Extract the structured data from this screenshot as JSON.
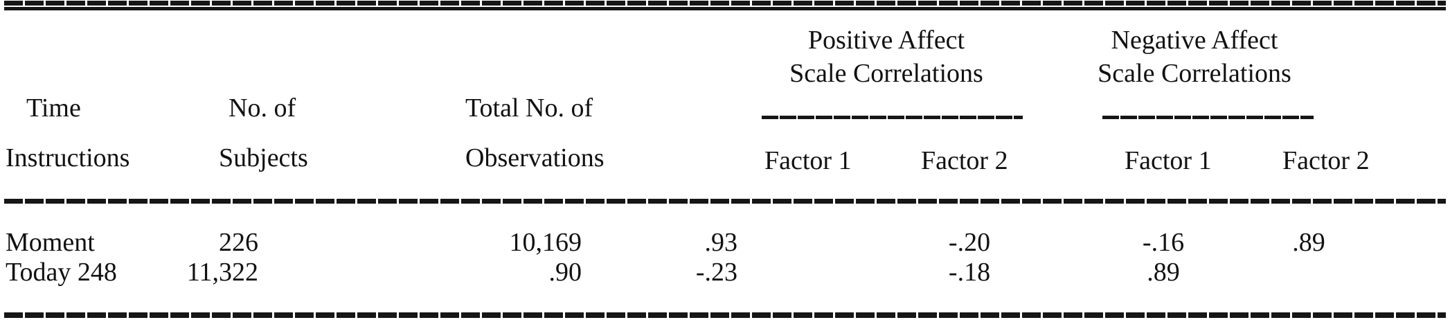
{
  "page": {
    "background_color": "#ffffff",
    "text_color": "#111111",
    "rule_color": "#161616"
  },
  "table": {
    "columns": {
      "time": {
        "line1": "Time",
        "line2": "Instructions"
      },
      "subjects": {
        "line1": "No. of",
        "line2": "Subjects"
      },
      "observations": {
        "line1": "Total No. of",
        "line2": "Observations"
      }
    },
    "groups": {
      "positive": {
        "line1": "Positive Affect",
        "line2": "Scale Correlations",
        "factor1": "Factor 1",
        "factor2": "Factor 2"
      },
      "negative": {
        "line1": "Negative Affect",
        "line2": "Scale Correlations",
        "factor1": "Factor 1",
        "factor2": "Factor 2"
      }
    },
    "rows": [
      {
        "cells": [
          "Moment",
          "226",
          "10,169",
          ".93",
          "-.20",
          "-.16",
          ".89"
        ]
      },
      {
        "cells": [
          "Today 248",
          "11,322",
          ".90",
          "-.23",
          "-.18",
          ".89",
          ""
        ]
      }
    ]
  }
}
